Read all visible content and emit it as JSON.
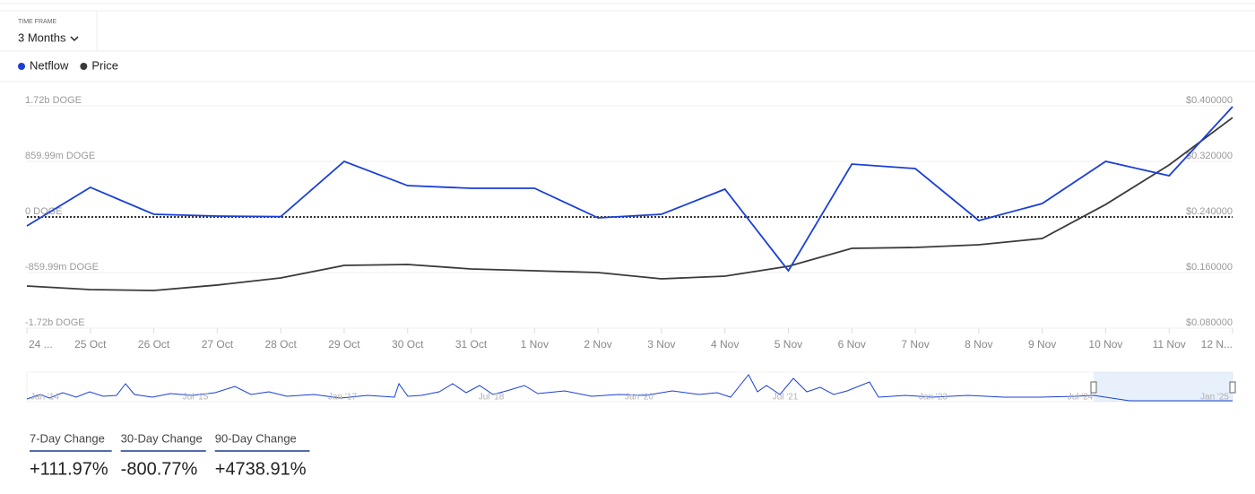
{
  "header": {
    "time_frame_label": "TIME FRAME",
    "time_frame": "3 Months"
  },
  "chart_data": {
    "type": "line",
    "categories": [
      "24 ...",
      "25 Oct",
      "26 Oct",
      "27 Oct",
      "28 Oct",
      "29 Oct",
      "30 Oct",
      "31 Oct",
      "1 Nov",
      "2 Nov",
      "3 Nov",
      "4 Nov",
      "5 Nov",
      "6 Nov",
      "7 Nov",
      "8 Nov",
      "9 Nov",
      "10 Nov",
      "11 Nov",
      "12 N..."
    ],
    "series": [
      {
        "name": "Netflow",
        "color": "#1a3fd6",
        "values": [
          -139000000,
          458000000,
          42000000,
          14000000,
          5000000,
          860000000,
          485000000,
          444000000,
          444000000,
          -14000000,
          42000000,
          430000000,
          -832000000,
          818000000,
          749000000,
          -55000000,
          208000000,
          860000000,
          638000000,
          1706000000
        ]
      },
      {
        "name": "Price",
        "color": "#3a3a3a",
        "axis": "y2",
        "values": [
          0.1406,
          0.1355,
          0.1342,
          0.142,
          0.1523,
          0.1703,
          0.1716,
          0.1652,
          0.1626,
          0.16,
          0.151,
          0.1548,
          0.169,
          0.1948,
          0.1961,
          0.2,
          0.209,
          0.258,
          0.3148,
          0.383
        ]
      }
    ],
    "ylim": [
      -1720000000,
      1720000000
    ],
    "yticks": [
      {
        "value": 1720000000,
        "label": "1.72b DOGE"
      },
      {
        "value": 859990000,
        "label": "859.99m DOGE"
      },
      {
        "value": 0,
        "label": "0 DOGE"
      },
      {
        "value": -859990000,
        "label": "-859.99m DOGE"
      },
      {
        "value": -1720000000,
        "label": "-1.72b DOGE"
      }
    ],
    "y2lim": [
      0.08,
      0.4
    ],
    "y2ticks": [
      {
        "value": 0.4,
        "label": "$0.400000"
      },
      {
        "value": 0.32,
        "label": "$0.320000"
      },
      {
        "value": 0.24,
        "label": "$0.240000"
      },
      {
        "value": 0.16,
        "label": "$0.160000"
      },
      {
        "value": 0.08,
        "label": "$0.080000"
      }
    ],
    "grid": true,
    "zero_line": true
  },
  "navigator": {
    "labels": [
      "Jan '14",
      "Jul '15",
      "Jan '17",
      "Jul '18",
      "Jan '20",
      "Jul '21",
      "Jan '23",
      "Jul '24",
      "Jan '25"
    ]
  },
  "stats": [
    {
      "label": "7-Day Change",
      "value": "+111.97%"
    },
    {
      "label": "30-Day Change",
      "value": "-800.77%"
    },
    {
      "label": "90-Day Change",
      "value": "+4738.91%"
    }
  ]
}
